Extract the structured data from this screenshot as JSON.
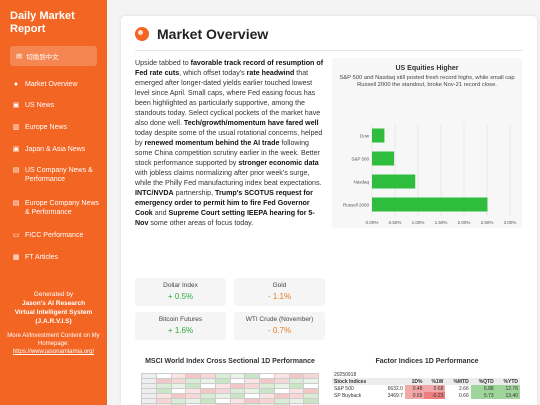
{
  "sidebar": {
    "brand": "Daily Market Report",
    "lang_button": "切換到中文",
    "nav": [
      {
        "icon": "globe-icon",
        "glyph": "●",
        "label": "Market Overview"
      },
      {
        "icon": "flag-icon",
        "glyph": "▣",
        "label": "US News"
      },
      {
        "icon": "bank-icon",
        "glyph": "▥",
        "label": "Europe News"
      },
      {
        "icon": "flag-icon",
        "glyph": "▣",
        "label": "Japan & Asia News"
      },
      {
        "icon": "building-icon",
        "glyph": "▤",
        "label": "US Company News & Performance"
      },
      {
        "icon": "building-icon",
        "glyph": "▤",
        "label": "Europe Company News & Performance"
      },
      {
        "icon": "chart-icon",
        "glyph": "▭",
        "label": "FICC Performance"
      },
      {
        "icon": "newspaper-icon",
        "glyph": "▦",
        "label": "FT Articles"
      }
    ],
    "footer": {
      "generated_by": "Generated by",
      "line1": "Jason's AI Research",
      "line2": "Virtual Intelligent System",
      "line3": "(J.A.R.V.I.S)",
      "more_text": "More AI/Investment Content on My Homepage:",
      "link": "https://www.jasonamlamia.org/"
    }
  },
  "main": {
    "title": "Market Overview",
    "summary_html_parts": [
      {
        "t": "Upside tabbed to ",
        "b": false
      },
      {
        "t": "favorable track record of resumption of Fed rate cuts",
        "b": true
      },
      {
        "t": ", which offset today's ",
        "b": false
      },
      {
        "t": "rate headwind",
        "b": true
      },
      {
        "t": " that emerged after longer-dated yields earlier touched lowest level since April. Small caps, where Fed easing focus has been highlighted as particularly supportive, among the standouts today. Select cyclical pockets of the market have also done well. ",
        "b": false
      },
      {
        "t": "Tech/growth/momentum have fared well",
        "b": true
      },
      {
        "t": " today despite some of the usual rotational concerns, helped by ",
        "b": false
      },
      {
        "t": "renewed momentum behind the AI trade",
        "b": true
      },
      {
        "t": " following some China competition scrutiny earlier in the week. Better stock performance supported by ",
        "b": false
      },
      {
        "t": "stronger economic data",
        "b": true
      },
      {
        "t": " with jobless claims normalizing after prior week's surge, while the Philly Fed manufacturing index beat expectations. ",
        "b": false
      },
      {
        "t": "INTC/NVDA",
        "b": true
      },
      {
        "t": " partnership, ",
        "b": false
      },
      {
        "t": "Trump's SCOTUS request for emergency order to permit him to fire Fed Governor Cook",
        "b": true
      },
      {
        "t": " and ",
        "b": false
      },
      {
        "t": "Supreme Court setting IEEPA hearing for 5-Nov",
        "b": true
      },
      {
        "t": " some other areas of focus today.",
        "b": false
      }
    ],
    "metrics": [
      {
        "name": "Dollar Index",
        "value": "+ 0.5%",
        "dir": "pos"
      },
      {
        "name": "Gold",
        "value": "- 1.1%",
        "dir": "neg"
      },
      {
        "name": "Bitcoin Futures",
        "value": "+ 1.6%",
        "dir": "pos"
      },
      {
        "name": "WTI Crude (November)",
        "value": "- 0.7%",
        "dir": "neg"
      }
    ],
    "bottom_left_title": "MSCI World Index Cross Sectional 1D Performance",
    "bottom_right_title": "Factor Indices 1D Performance"
  },
  "chart_data": {
    "type": "bar",
    "orientation": "horizontal",
    "title": "US Equities Higher",
    "subtitle": "S&P 500 and Nasdaq still posted fresh record highs, while small cap Russell 2000 the standout, broke Nov-21 record close.",
    "categories": [
      "Dow",
      "S&P 500",
      "Nasdaq",
      "Russell 2000"
    ],
    "values": [
      0.27,
      0.48,
      0.94,
      2.51
    ],
    "xlim": [
      0,
      3
    ],
    "ticks": [
      "0.00%",
      "0.50%",
      "1.00%",
      "1.50%",
      "2.00%",
      "2.50%",
      "3.00%"
    ],
    "color": "#2ebd3d"
  },
  "factor_table": {
    "date": "20250918",
    "headers": [
      "Stock Indices",
      "",
      "1D%",
      "%1W",
      "%MTD",
      "%QTD",
      "%YTD"
    ],
    "rows": [
      [
        "S&P 500",
        "6632.0",
        "0.48",
        "0.68",
        "2.66",
        "6.88",
        "12.76"
      ],
      [
        "SP Buyback",
        "3469.7",
        "0.69",
        "-0.23",
        "0.66",
        "5.73",
        "13.40"
      ]
    ]
  }
}
